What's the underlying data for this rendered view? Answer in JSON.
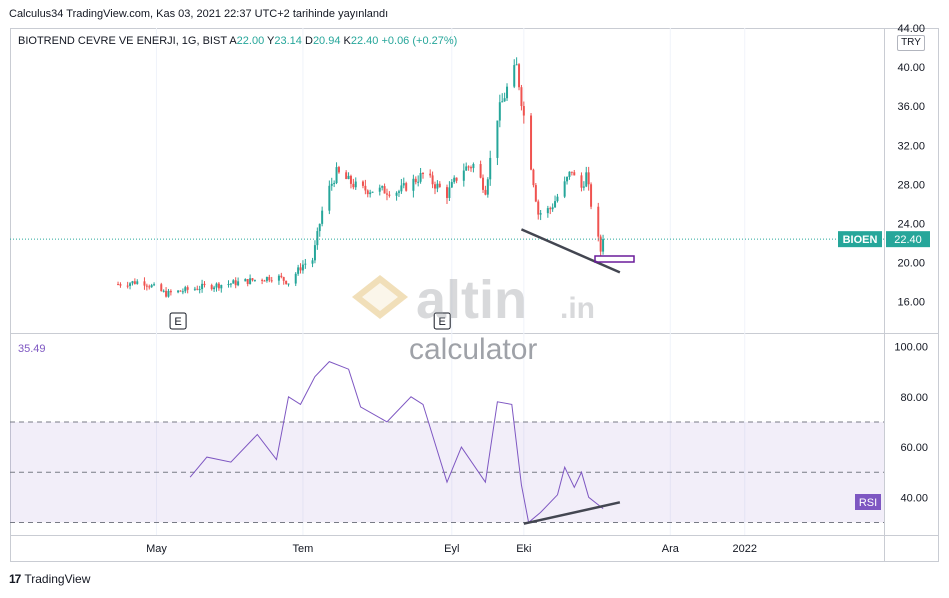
{
  "header": {
    "published_line": "Calculus34 TradingView.com, Kas 03, 2021 22:37 UTC+2 tarihinde yayınlandı"
  },
  "symbol_info": {
    "name": "BIOTREND CEVRE VE ENERJI, 1G, BIST",
    "open_label": "A",
    "open": "22.00",
    "high_label": "Y",
    "high": "23.14",
    "low_label": "D",
    "low": "20.94",
    "close_label": "K",
    "close": "22.40",
    "change": "+0.06 (+0.27%)"
  },
  "currency_button": "TRY",
  "price_badge": {
    "ticker": "BIOEN",
    "price": "22.40"
  },
  "rsi_badge": "RSI",
  "rsi_value": "35.49",
  "x_axis_labels": [
    "May",
    "Tem",
    "Eyl",
    "Eki",
    "Ara",
    "2022"
  ],
  "earnings_markers": [
    "E",
    "E"
  ],
  "watermark": {
    "brand": "altin",
    "brand_suffix": ".in",
    "sub": "calculator"
  },
  "footer": {
    "logo": "17",
    "text": "TradingView"
  },
  "colors": {
    "up": "#26a69a",
    "down": "#ef5350",
    "rsi": "#7e57c2",
    "trendline": "#434651",
    "badge": "#26a69a"
  },
  "chart_data": [
    {
      "type": "candlestick",
      "title": "BIOTREND CEVRE VE ENERJI, 1G, BIST",
      "ylim": [
        12.8,
        44
      ],
      "y_ticks": [
        16,
        20,
        24,
        28,
        32,
        36,
        40,
        44
      ],
      "last_price": 22.4,
      "trendline": {
        "from": {
          "date": "2021-09-30",
          "value": 23.4
        },
        "to": {
          "date": "2021-11-10",
          "value": 19.0
        }
      },
      "approx_close_path": [
        {
          "date": "2021-04-15",
          "value": 17.8
        },
        {
          "date": "2021-04-25",
          "value": 18.1
        },
        {
          "date": "2021-05-05",
          "value": 16.8
        },
        {
          "date": "2021-05-20",
          "value": 17.5
        },
        {
          "date": "2021-06-05",
          "value": 18.0
        },
        {
          "date": "2021-06-20",
          "value": 18.6
        },
        {
          "date": "2021-06-25",
          "value": 18.0
        },
        {
          "date": "2021-07-01",
          "value": 19.8
        },
        {
          "date": "2021-07-05",
          "value": 20.3
        },
        {
          "date": "2021-07-10",
          "value": 26.5
        },
        {
          "date": "2021-07-15",
          "value": 29.2
        },
        {
          "date": "2021-07-25",
          "value": 27.5
        },
        {
          "date": "2021-08-10",
          "value": 27.3
        },
        {
          "date": "2021-08-20",
          "value": 29.0
        },
        {
          "date": "2021-08-30",
          "value": 27.0
        },
        {
          "date": "2021-09-05",
          "value": 29.5
        },
        {
          "date": "2021-09-10",
          "value": 30.0
        },
        {
          "date": "2021-09-15",
          "value": 27.5
        },
        {
          "date": "2021-09-20",
          "value": 35.0
        },
        {
          "date": "2021-09-25",
          "value": 38.5
        },
        {
          "date": "2021-09-28",
          "value": 40.0
        },
        {
          "date": "2021-10-01",
          "value": 35.0
        },
        {
          "date": "2021-10-04",
          "value": 30.0
        },
        {
          "date": "2021-10-07",
          "value": 25.0
        },
        {
          "date": "2021-10-12",
          "value": 25.5
        },
        {
          "date": "2021-10-18",
          "value": 28.0
        },
        {
          "date": "2021-10-21",
          "value": 29.5
        },
        {
          "date": "2021-10-24",
          "value": 27.0
        },
        {
          "date": "2021-10-27",
          "value": 29.0
        },
        {
          "date": "2021-10-30",
          "value": 24.5
        },
        {
          "date": "2021-11-02",
          "value": 21.2
        },
        {
          "date": "2021-11-03",
          "value": 22.4
        }
      ]
    },
    {
      "type": "line",
      "title": "RSI",
      "ylim": [
        25,
        105
      ],
      "y_ticks": [
        40,
        60,
        80,
        100
      ],
      "bands": [
        30,
        50,
        70
      ],
      "last_value": 35.49,
      "trendline": {
        "from": {
          "date": "2021-10-01",
          "value": 29.5
        },
        "to": {
          "date": "2021-11-10",
          "value": 38.0
        }
      },
      "series": [
        {
          "date": "2021-05-15",
          "value": 48
        },
        {
          "date": "2021-05-22",
          "value": 56
        },
        {
          "date": "2021-06-01",
          "value": 54
        },
        {
          "date": "2021-06-12",
          "value": 65
        },
        {
          "date": "2021-06-20",
          "value": 55
        },
        {
          "date": "2021-06-25",
          "value": 80
        },
        {
          "date": "2021-06-30",
          "value": 77
        },
        {
          "date": "2021-07-06",
          "value": 88
        },
        {
          "date": "2021-07-12",
          "value": 94
        },
        {
          "date": "2021-07-20",
          "value": 91
        },
        {
          "date": "2021-07-25",
          "value": 76
        },
        {
          "date": "2021-08-05",
          "value": 70
        },
        {
          "date": "2021-08-15",
          "value": 80
        },
        {
          "date": "2021-08-20",
          "value": 77
        },
        {
          "date": "2021-08-30",
          "value": 46
        },
        {
          "date": "2021-09-05",
          "value": 60
        },
        {
          "date": "2021-09-15",
          "value": 46
        },
        {
          "date": "2021-09-20",
          "value": 78
        },
        {
          "date": "2021-09-26",
          "value": 77
        },
        {
          "date": "2021-09-30",
          "value": 45
        },
        {
          "date": "2021-10-03",
          "value": 30
        },
        {
          "date": "2021-10-08",
          "value": 34
        },
        {
          "date": "2021-10-15",
          "value": 41
        },
        {
          "date": "2021-10-18",
          "value": 52
        },
        {
          "date": "2021-10-22",
          "value": 44
        },
        {
          "date": "2021-10-25",
          "value": 50
        },
        {
          "date": "2021-10-28",
          "value": 40
        },
        {
          "date": "2021-11-03",
          "value": 35.49
        }
      ]
    }
  ]
}
